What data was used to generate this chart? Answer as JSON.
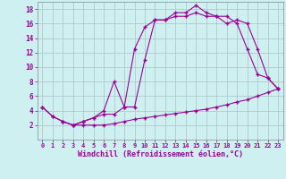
{
  "xlabel": "Windchill (Refroidissement éolien,°C)",
  "background_color": "#cff0f0",
  "line_color": "#990099",
  "grid_color": "#b0c8c8",
  "xlim": [
    -0.5,
    23.5
  ],
  "ylim": [
    0,
    19
  ],
  "xticks": [
    0,
    1,
    2,
    3,
    4,
    5,
    6,
    7,
    8,
    9,
    10,
    11,
    12,
    13,
    14,
    15,
    16,
    17,
    18,
    19,
    20,
    21,
    22,
    23
  ],
  "yticks": [
    2,
    4,
    6,
    8,
    10,
    12,
    14,
    16,
    18
  ],
  "line1_x": [
    0,
    1,
    2,
    3,
    4,
    5,
    6,
    7,
    8,
    9,
    10,
    11,
    12,
    13,
    14,
    15,
    16,
    17,
    18,
    19,
    20,
    21,
    22,
    23
  ],
  "line1_y": [
    4.5,
    3.2,
    2.5,
    2.0,
    2.0,
    2.0,
    2.0,
    2.2,
    2.5,
    2.8,
    3.0,
    3.2,
    3.4,
    3.6,
    3.8,
    4.0,
    4.2,
    4.5,
    4.8,
    5.2,
    5.5,
    6.0,
    6.5,
    7.0
  ],
  "line2_x": [
    0,
    1,
    2,
    3,
    4,
    5,
    6,
    7,
    8,
    9,
    10,
    11,
    12,
    13,
    14,
    15,
    16,
    17,
    18,
    19,
    20,
    21,
    22,
    23
  ],
  "line2_y": [
    4.5,
    3.2,
    2.5,
    2.0,
    2.5,
    3.0,
    4.0,
    8.0,
    4.5,
    12.5,
    15.5,
    16.5,
    16.5,
    17.5,
    17.5,
    18.5,
    17.5,
    17.0,
    17.0,
    16.0,
    12.5,
    9.0,
    8.5,
    7.0
  ],
  "line3_x": [
    2,
    3,
    4,
    5,
    6,
    7,
    8,
    9,
    10,
    11,
    12,
    13,
    14,
    15,
    16,
    17,
    18,
    19,
    20,
    21,
    22,
    23
  ],
  "line3_y": [
    2.5,
    2.0,
    2.5,
    3.0,
    3.5,
    3.5,
    4.5,
    4.5,
    11.0,
    16.5,
    16.5,
    17.0,
    17.0,
    17.5,
    17.0,
    17.0,
    16.0,
    16.5,
    16.0,
    12.5,
    8.5,
    7.0
  ]
}
